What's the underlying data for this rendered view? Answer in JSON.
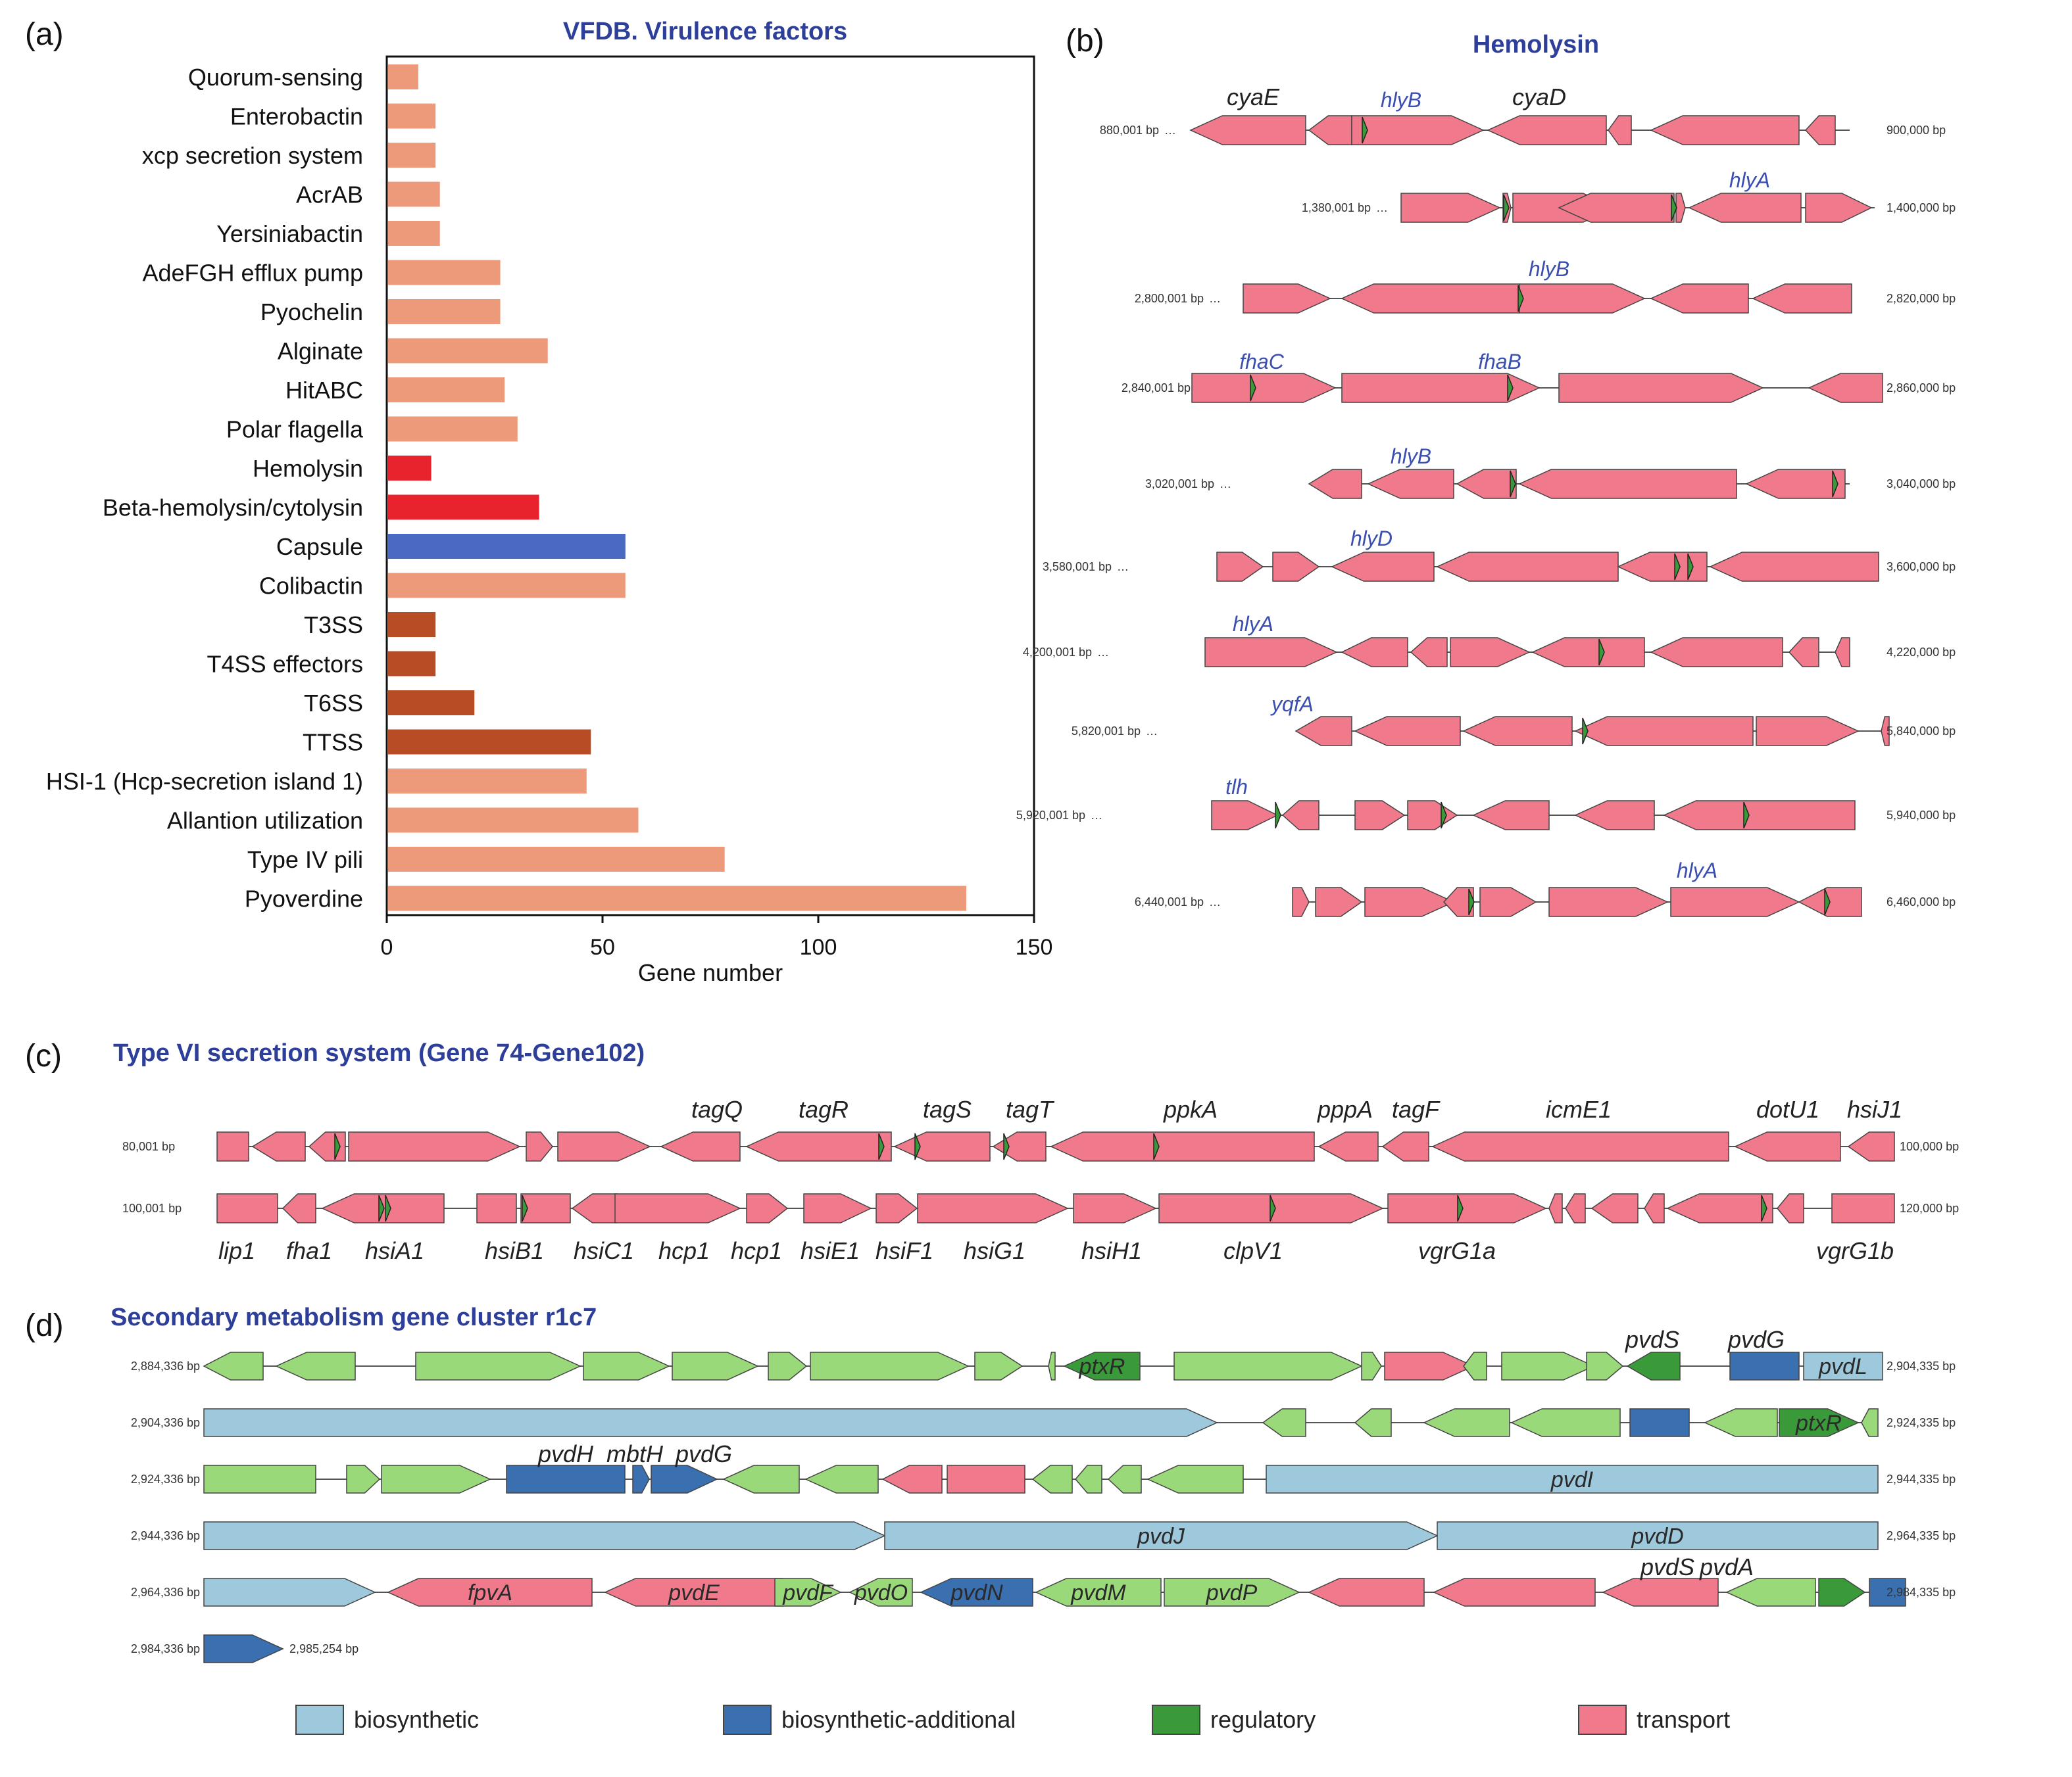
{
  "panels": {
    "a": {
      "label": "(a)",
      "title": "VFDB. Virulence factors",
      "chart_data": {
        "type": "bar",
        "orientation": "horizontal",
        "title": "VFDB. Virulence factors",
        "xlabel": "Gene number",
        "ylabel": "",
        "xlim": [
          0,
          150
        ],
        "xticks": [
          "0",
          "50",
          "100",
          "150"
        ],
        "categories": [
          "Quorum-sensing",
          "Enterobactin",
          "xcp secretion system",
          "AcrAB",
          "Yersiniabactin",
          "AdeFGH efflux pump",
          "Pyochelin",
          "Alginate",
          "HitABC",
          "Polar flagella",
          "Hemolysin",
          "Beta-hemolysin/cytolysin",
          "Capsule",
          "Colibactin",
          "T3SS",
          "T4SS effectors",
          "T6SS",
          "TTSS",
          "HSI-1 (Hcp-secretion island 1)",
          "Allantion utilization",
          "Type IV pili",
          "Pyoverdine"
        ],
        "values": [
          7,
          11,
          11,
          12,
          12,
          26,
          26,
          37,
          27,
          30,
          10,
          35,
          55,
          55,
          11,
          11,
          20,
          47,
          46,
          58,
          78,
          134
        ],
        "colors": [
          "#ec9a7a",
          "#ec9a7a",
          "#ec9a7a",
          "#ec9a7a",
          "#ec9a7a",
          "#ec9a7a",
          "#ec9a7a",
          "#ec9a7a",
          "#ec9a7a",
          "#ec9a7a",
          "#e8232d",
          "#e8232d",
          "#4a69c0",
          "#ec9a7a",
          "#b84c24",
          "#b84c24",
          "#b84c24",
          "#b84c24",
          "#ec9a7a",
          "#ec9a7a",
          "#ec9a7a",
          "#ec9a7a"
        ],
        "grid": false,
        "legend": "none"
      }
    },
    "b": {
      "label": "(b)",
      "title": "Hemolysin",
      "tracks": [
        {
          "left": "880,001 bp",
          "right": "900,000 bp",
          "genes": [
            {
              "name": "cyaE",
              "blue": false
            },
            {
              "name": "hlyB",
              "blue": true
            },
            {
              "name": "cyaD",
              "blue": false
            }
          ]
        },
        {
          "left": "1,380,001 bp",
          "right": "1,400,000 bp",
          "genes": [
            {
              "name": "hlyA",
              "blue": true
            }
          ]
        },
        {
          "left": "2,800,001 bp",
          "right": "2,820,000 bp",
          "genes": [
            {
              "name": "hlyB",
              "blue": true
            }
          ]
        },
        {
          "left": "2,840,001 bp",
          "right": "2,860,000 bp",
          "genes": [
            {
              "name": "fhaC",
              "blue": true
            },
            {
              "name": "fhaB",
              "blue": true
            }
          ]
        },
        {
          "left": "3,020,001 bp",
          "right": "3,040,000 bp",
          "genes": [
            {
              "name": "hlyB",
              "blue": true
            }
          ]
        },
        {
          "left": "3,580,001 bp",
          "right": "3,600,000 bp",
          "genes": [
            {
              "name": "hlyD",
              "blue": true
            }
          ]
        },
        {
          "left": "4,200,001 bp",
          "right": "4,220,000 bp",
          "genes": [
            {
              "name": "hlyA",
              "blue": true
            }
          ]
        },
        {
          "left": "5,820,001 bp",
          "right": "5,840,000 bp",
          "genes": [
            {
              "name": "yqfA",
              "blue": true
            }
          ]
        },
        {
          "left": "5,920,001 bp",
          "right": "5,940,000 bp",
          "genes": [
            {
              "name": "tlh",
              "blue": true
            }
          ]
        },
        {
          "left": "6,440,001 bp",
          "right": "6,460,000 bp",
          "genes": [
            {
              "name": "hlyA",
              "blue": true
            }
          ]
        }
      ]
    },
    "c": {
      "label": "(c)",
      "title": "Type VI secretion system (Gene 74-Gene102)",
      "rows": [
        {
          "left": "80,001 bp",
          "right": "100,000 bp",
          "labels": [
            "tagQ",
            "tagR",
            "tagS",
            "tagT",
            "ppkA",
            "pppA",
            "tagF",
            "icmE1",
            "dotU1",
            "hsiJ1"
          ]
        },
        {
          "left": "100,001 bp",
          "right": "120,000 bp",
          "labels": [
            "lip1",
            "fha1",
            "hsiA1",
            "hsiB1",
            "hsiC1",
            "hcp1",
            "hcp1",
            "hsiE1",
            "hsiF1",
            "hsiG1",
            "hsiH1",
            "clpV1",
            "vgrG1a",
            "vgrG1b"
          ]
        }
      ]
    },
    "d": {
      "label": "(d)",
      "title": "Secondary metabolism gene cluster r1c7",
      "rows": [
        {
          "left": "2,884,336 bp",
          "right": "2,904,335 bp",
          "inside": [
            "ptxR",
            "pvdL"
          ],
          "above": [
            "pvdS",
            "pvdG"
          ]
        },
        {
          "left": "2,904,336 bp",
          "right": "2,924,335 bp",
          "inside": [
            "ptxR"
          ],
          "above": []
        },
        {
          "left": "2,924,336 bp",
          "right": "2,944,335 bp",
          "inside": [
            "pvdI"
          ],
          "above": [
            "pvdH",
            "mbtH",
            "pvdG"
          ]
        },
        {
          "left": "2,944,336 bp",
          "right": "2,964,335 bp",
          "inside": [
            "pvdJ",
            "pvdD"
          ],
          "above": []
        },
        {
          "left": "2,964,336 bp",
          "right": "2,984,335 bp",
          "inside": [
            "fpvA",
            "pvdE",
            "pvdF",
            "pvdO",
            "pvdN",
            "pvdM",
            "pvdP"
          ],
          "above": [
            "pvdS",
            "pvdA"
          ]
        },
        {
          "left": "2,984,336 bp",
          "right": "2,985,254 bp",
          "inside": [],
          "above": []
        }
      ],
      "legend": [
        {
          "label": "biosynthetic",
          "color": "#9ec8dc"
        },
        {
          "label": "biosynthetic-additional",
          "color": "#3a6fb0"
        },
        {
          "label": "regulatory",
          "color": "#3a9a3a"
        },
        {
          "label": "transport",
          "color": "#f07a8c"
        }
      ]
    }
  },
  "colors": {
    "gene_pink": "#f07a8c",
    "gene_green": "#9ad97a",
    "dark_green": "#3a9a3a",
    "light_blue": "#9ec8dc",
    "dark_blue": "#3a6fb0"
  }
}
